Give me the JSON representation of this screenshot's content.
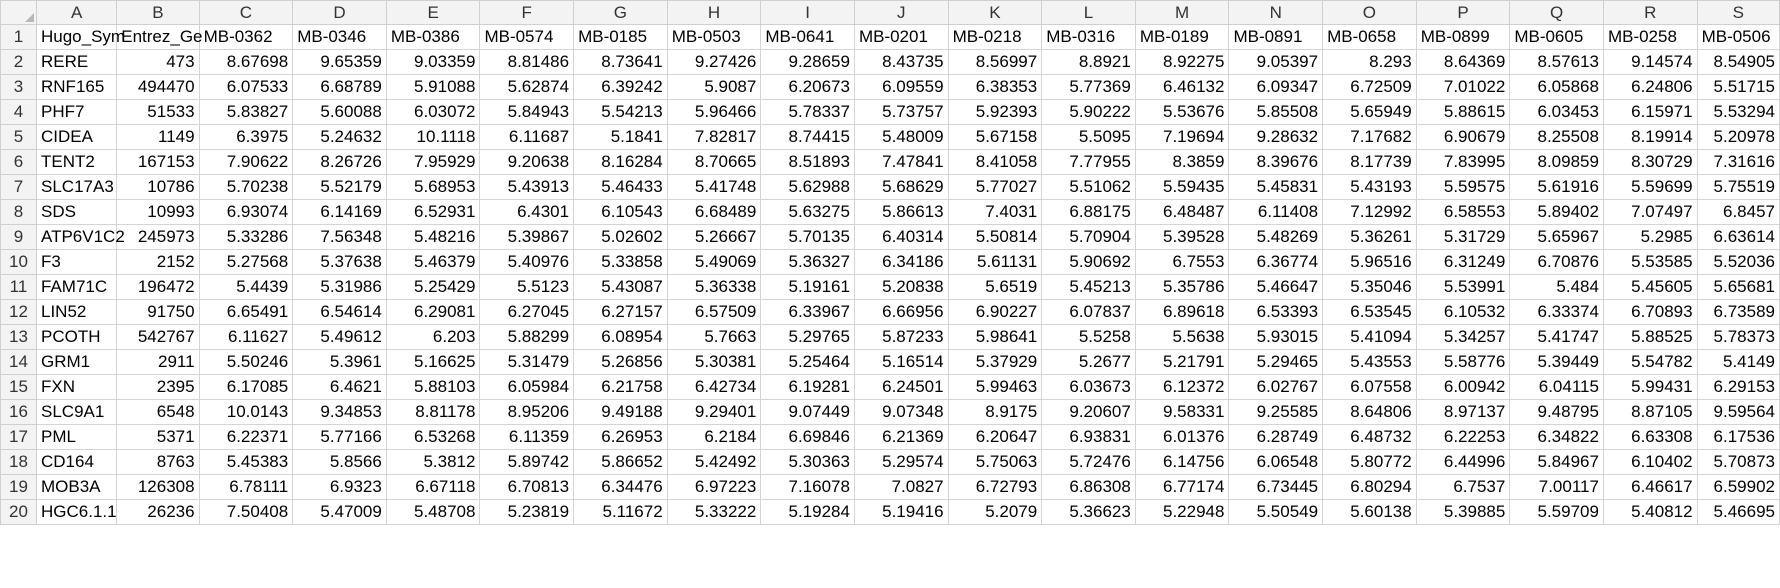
{
  "sheet": {
    "column_letters": [
      "A",
      "B",
      "C",
      "D",
      "E",
      "F",
      "G",
      "H",
      "I",
      "J",
      "K",
      "L",
      "M",
      "N",
      "O",
      "P",
      "Q",
      "R",
      "S"
    ],
    "header_row": {
      "row_number": "1",
      "cells": [
        "Hugo_Sym",
        "Entrez_Ge",
        "MB-0362",
        "MB-0346",
        "MB-0386",
        "MB-0574",
        "MB-0185",
        "MB-0503",
        "MB-0641",
        "MB-0201",
        "MB-0218",
        "MB-0316",
        "MB-0189",
        "MB-0891",
        "MB-0658",
        "MB-0899",
        "MB-0605",
        "MB-0258",
        "MB-0506"
      ]
    },
    "rows": [
      {
        "n": "2",
        "cells": [
          "RERE",
          "473",
          "8.67698",
          "9.65359",
          "9.03359",
          "8.81486",
          "8.73641",
          "9.27426",
          "9.28659",
          "8.43735",
          "8.56997",
          "8.8921",
          "8.92275",
          "9.05397",
          "8.293",
          "8.64369",
          "8.57613",
          "9.14574",
          "8.54905"
        ]
      },
      {
        "n": "3",
        "cells": [
          "RNF165",
          "494470",
          "6.07533",
          "6.68789",
          "5.91088",
          "5.62874",
          "6.39242",
          "5.9087",
          "6.20673",
          "6.09559",
          "6.38353",
          "5.77369",
          "6.46132",
          "6.09347",
          "6.72509",
          "7.01022",
          "6.05868",
          "6.24806",
          "5.51715"
        ]
      },
      {
        "n": "4",
        "cells": [
          "PHF7",
          "51533",
          "5.83827",
          "5.60088",
          "6.03072",
          "5.84943",
          "5.54213",
          "5.96466",
          "5.78337",
          "5.73757",
          "5.92393",
          "5.90222",
          "5.53676",
          "5.85508",
          "5.65949",
          "5.88615",
          "6.03453",
          "6.15971",
          "5.53294"
        ]
      },
      {
        "n": "5",
        "cells": [
          "CIDEA",
          "1149",
          "6.3975",
          "5.24632",
          "10.1118",
          "6.11687",
          "5.1841",
          "7.82817",
          "8.74415",
          "5.48009",
          "5.67158",
          "5.5095",
          "7.19694",
          "9.28632",
          "7.17682",
          "6.90679",
          "8.25508",
          "8.19914",
          "5.20978"
        ]
      },
      {
        "n": "6",
        "cells": [
          "TENT2",
          "167153",
          "7.90622",
          "8.26726",
          "7.95929",
          "9.20638",
          "8.16284",
          "8.70665",
          "8.51893",
          "7.47841",
          "8.41058",
          "7.77955",
          "8.3859",
          "8.39676",
          "8.17739",
          "7.83995",
          "8.09859",
          "8.30729",
          "7.31616"
        ]
      },
      {
        "n": "7",
        "cells": [
          "SLC17A3",
          "10786",
          "5.70238",
          "5.52179",
          "5.68953",
          "5.43913",
          "5.46433",
          "5.41748",
          "5.62988",
          "5.68629",
          "5.77027",
          "5.51062",
          "5.59435",
          "5.45831",
          "5.43193",
          "5.59575",
          "5.61916",
          "5.59699",
          "5.75519"
        ]
      },
      {
        "n": "8",
        "cells": [
          "SDS",
          "10993",
          "6.93074",
          "6.14169",
          "6.52931",
          "6.4301",
          "6.10543",
          "6.68489",
          "5.63275",
          "5.86613",
          "7.4031",
          "6.88175",
          "6.48487",
          "6.11408",
          "7.12992",
          "6.58553",
          "5.89402",
          "7.07497",
          "6.8457"
        ]
      },
      {
        "n": "9",
        "cells": [
          "ATP6V1C2",
          "245973",
          "5.33286",
          "7.56348",
          "5.48216",
          "5.39867",
          "5.02602",
          "5.26667",
          "5.70135",
          "6.40314",
          "5.50814",
          "5.70904",
          "5.39528",
          "5.48269",
          "5.36261",
          "5.31729",
          "5.65967",
          "5.2985",
          "6.63614"
        ]
      },
      {
        "n": "10",
        "cells": [
          "F3",
          "2152",
          "5.27568",
          "5.37638",
          "5.46379",
          "5.40976",
          "5.33858",
          "5.49069",
          "5.36327",
          "6.34186",
          "5.61131",
          "5.90692",
          "6.7553",
          "6.36774",
          "5.96516",
          "6.31249",
          "6.70876",
          "5.53585",
          "5.52036"
        ]
      },
      {
        "n": "11",
        "cells": [
          "FAM71C",
          "196472",
          "5.4439",
          "5.31986",
          "5.25429",
          "5.5123",
          "5.43087",
          "5.36338",
          "5.19161",
          "5.20838",
          "5.6519",
          "5.45213",
          "5.35786",
          "5.46647",
          "5.35046",
          "5.53991",
          "5.484",
          "5.45605",
          "5.65681"
        ]
      },
      {
        "n": "12",
        "cells": [
          "LIN52",
          "91750",
          "6.65491",
          "6.54614",
          "6.29081",
          "6.27045",
          "6.27157",
          "6.57509",
          "6.33967",
          "6.66956",
          "6.90227",
          "6.07837",
          "6.89618",
          "6.53393",
          "6.53545",
          "6.10532",
          "6.33374",
          "6.70893",
          "6.73589"
        ]
      },
      {
        "n": "13",
        "cells": [
          "PCOTH",
          "542767",
          "6.11627",
          "5.49612",
          "6.203",
          "5.88299",
          "6.08954",
          "5.7663",
          "5.29765",
          "5.87233",
          "5.98641",
          "5.5258",
          "5.5638",
          "5.93015",
          "5.41094",
          "5.34257",
          "5.41747",
          "5.88525",
          "5.78373"
        ]
      },
      {
        "n": "14",
        "cells": [
          "GRM1",
          "2911",
          "5.50246",
          "5.3961",
          "5.16625",
          "5.31479",
          "5.26856",
          "5.30381",
          "5.25464",
          "5.16514",
          "5.37929",
          "5.2677",
          "5.21791",
          "5.29465",
          "5.43553",
          "5.58776",
          "5.39449",
          "5.54782",
          "5.4149"
        ]
      },
      {
        "n": "15",
        "cells": [
          "FXN",
          "2395",
          "6.17085",
          "6.4621",
          "5.88103",
          "6.05984",
          "6.21758",
          "6.42734",
          "6.19281",
          "6.24501",
          "5.99463",
          "6.03673",
          "6.12372",
          "6.02767",
          "6.07558",
          "6.00942",
          "6.04115",
          "5.99431",
          "6.29153"
        ]
      },
      {
        "n": "16",
        "cells": [
          "SLC9A1",
          "6548",
          "10.0143",
          "9.34853",
          "8.81178",
          "8.95206",
          "9.49188",
          "9.29401",
          "9.07449",
          "9.07348",
          "8.9175",
          "9.20607",
          "9.58331",
          "9.25585",
          "8.64806",
          "8.97137",
          "9.48795",
          "8.87105",
          "9.59564"
        ]
      },
      {
        "n": "17",
        "cells": [
          "PML",
          "5371",
          "6.22371",
          "5.77166",
          "6.53268",
          "6.11359",
          "6.26953",
          "6.2184",
          "6.69846",
          "6.21369",
          "6.20647",
          "6.93831",
          "6.01376",
          "6.28749",
          "6.48732",
          "6.22253",
          "6.34822",
          "6.63308",
          "6.17536"
        ]
      },
      {
        "n": "18",
        "cells": [
          "CD164",
          "8763",
          "5.45383",
          "5.8566",
          "5.3812",
          "5.89742",
          "5.86652",
          "5.42492",
          "5.30363",
          "5.29574",
          "5.75063",
          "5.72476",
          "6.14756",
          "6.06548",
          "5.80772",
          "6.44996",
          "5.84967",
          "6.10402",
          "5.70873"
        ]
      },
      {
        "n": "19",
        "cells": [
          "MOB3A",
          "126308",
          "6.78111",
          "6.9323",
          "6.67118",
          "6.70813",
          "6.34476",
          "6.97223",
          "7.16078",
          "7.0827",
          "6.72793",
          "6.86308",
          "6.77174",
          "6.73445",
          "6.80294",
          "6.7537",
          "7.00117",
          "6.46617",
          "6.59902"
        ]
      },
      {
        "n": "20",
        "cells": [
          "HGC6.1.1",
          "26236",
          "7.50408",
          "5.47009",
          "5.48708",
          "5.23819",
          "5.11672",
          "5.33222",
          "5.19284",
          "5.19416",
          "5.2079",
          "5.36623",
          "5.22948",
          "5.50549",
          "5.60138",
          "5.39885",
          "5.59709",
          "5.40812",
          "5.46695"
        ]
      }
    ]
  }
}
